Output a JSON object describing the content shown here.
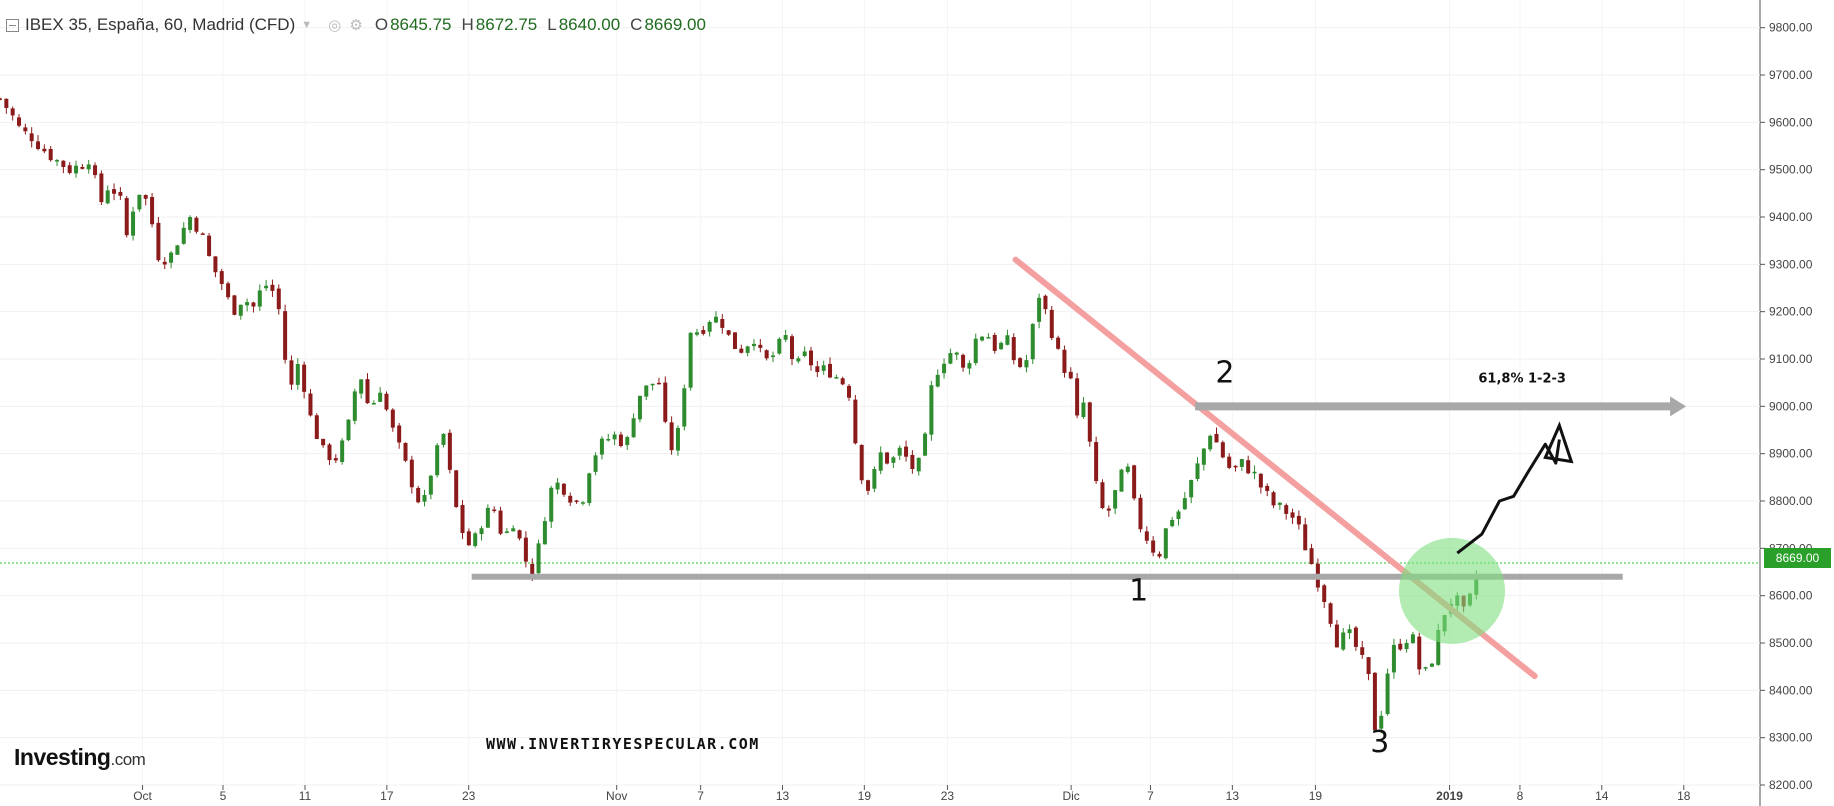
{
  "header": {
    "symbol": "IBEX 35, España, 60, Madrid (CFD)",
    "tools": "◎ ⚙",
    "open_label": "O",
    "open_value": "8645.75",
    "high_label": "H",
    "high_value": "8672.75",
    "low_label": "L",
    "low_value": "8640.00",
    "close_label": "C",
    "close_value": "8669.00"
  },
  "logo": {
    "name": "Investing",
    "suffix": ".com"
  },
  "watermark": "WWW.INVERTIRYESPECULAR.COM",
  "current_price_label": "8669.00",
  "colors": {
    "up": "#2e8b2e",
    "down": "#8b1a1a",
    "trendline": "#f4a0a0",
    "level": "#a8a8a8",
    "price_line": "#22cc22",
    "highlight": "#7ee07e"
  },
  "chart_data": {
    "type": "candlestick",
    "y_axis": {
      "position": "right",
      "range": [
        8200,
        9850
      ],
      "ticks": [
        "9800.00",
        "9700.00",
        "9600.00",
        "9500.00",
        "9400.00",
        "9300.00",
        "9200.00",
        "9100.00",
        "9000.00",
        "8900.00",
        "8800.00",
        "8700.00",
        "8600.00",
        "8500.00",
        "8400.00",
        "8300.00",
        "8200.00"
      ]
    },
    "x_axis": {
      "ticks": [
        {
          "label": "Oct",
          "pos": 0.081
        },
        {
          "label": "5",
          "pos": 0.1267
        },
        {
          "label": "11",
          "pos": 0.1733
        },
        {
          "label": "17",
          "pos": 0.2198
        },
        {
          "label": "23",
          "pos": 0.2663
        },
        {
          "label": "Nov",
          "pos": 0.3504
        },
        {
          "label": "7",
          "pos": 0.3981
        },
        {
          "label": "13",
          "pos": 0.4446
        },
        {
          "label": "19",
          "pos": 0.4911
        },
        {
          "label": "23",
          "pos": 0.5383
        },
        {
          "label": "Dic",
          "pos": 0.6086
        },
        {
          "label": "7",
          "pos": 0.6537
        },
        {
          "label": "13",
          "pos": 0.7002
        },
        {
          "label": "19",
          "pos": 0.7474
        },
        {
          "label": "2019",
          "pos": 0.8236
        },
        {
          "label": "8",
          "pos": 0.8636
        },
        {
          "label": "14",
          "pos": 0.9101
        },
        {
          "label": "18",
          "pos": 0.9567
        }
      ]
    },
    "last_price": 8669,
    "path": [
      [
        0.0,
        9650
      ],
      [
        0.006,
        9620
      ],
      [
        0.012,
        9580
      ],
      [
        0.018,
        9570
      ],
      [
        0.024,
        9545
      ],
      [
        0.032,
        9520
      ],
      [
        0.04,
        9500
      ],
      [
        0.046,
        9510
      ],
      [
        0.052,
        9530
      ],
      [
        0.056,
        9420
      ],
      [
        0.062,
        9470
      ],
      [
        0.068,
        9440
      ],
      [
        0.072,
        9360
      ],
      [
        0.078,
        9460
      ],
      [
        0.084,
        9430
      ],
      [
        0.09,
        9320
      ],
      [
        0.096,
        9310
      ],
      [
        0.102,
        9360
      ],
      [
        0.108,
        9400
      ],
      [
        0.114,
        9370
      ],
      [
        0.12,
        9300
      ],
      [
        0.126,
        9260
      ],
      [
        0.132,
        9200
      ],
      [
        0.138,
        9230
      ],
      [
        0.144,
        9210
      ],
      [
        0.15,
        9260
      ],
      [
        0.156,
        9240
      ],
      [
        0.16,
        9180
      ],
      [
        0.164,
        9020
      ],
      [
        0.17,
        9100
      ],
      [
        0.176,
        8980
      ],
      [
        0.184,
        8900
      ],
      [
        0.192,
        8890
      ],
      [
        0.198,
        8960
      ],
      [
        0.204,
        9080
      ],
      [
        0.21,
        8990
      ],
      [
        0.216,
        9040
      ],
      [
        0.222,
        8960
      ],
      [
        0.228,
        8900
      ],
      [
        0.234,
        8840
      ],
      [
        0.24,
        8780
      ],
      [
        0.246,
        8880
      ],
      [
        0.252,
        8940
      ],
      [
        0.258,
        8800
      ],
      [
        0.264,
        8720
      ],
      [
        0.268,
        8700
      ],
      [
        0.274,
        8760
      ],
      [
        0.28,
        8790
      ],
      [
        0.286,
        8720
      ],
      [
        0.292,
        8760
      ],
      [
        0.298,
        8680
      ],
      [
        0.302,
        8650
      ],
      [
        0.306,
        8700
      ],
      [
        0.312,
        8820
      ],
      [
        0.318,
        8840
      ],
      [
        0.324,
        8810
      ],
      [
        0.33,
        8790
      ],
      [
        0.336,
        8890
      ],
      [
        0.342,
        8920
      ],
      [
        0.348,
        8940
      ],
      [
        0.356,
        8920
      ],
      [
        0.362,
        9020
      ],
      [
        0.368,
        9040
      ],
      [
        0.374,
        9060
      ],
      [
        0.38,
        8900
      ],
      [
        0.386,
        8950
      ],
      [
        0.392,
        9160
      ],
      [
        0.398,
        9160
      ],
      [
        0.404,
        9190
      ],
      [
        0.41,
        9180
      ],
      [
        0.416,
        9130
      ],
      [
        0.422,
        9120
      ],
      [
        0.428,
        9150
      ],
      [
        0.434,
        9090
      ],
      [
        0.44,
        9110
      ],
      [
        0.446,
        9150
      ],
      [
        0.452,
        9080
      ],
      [
        0.458,
        9110
      ],
      [
        0.464,
        9070
      ],
      [
        0.47,
        9080
      ],
      [
        0.476,
        9060
      ],
      [
        0.482,
        9040
      ],
      [
        0.488,
        8870
      ],
      [
        0.494,
        8820
      ],
      [
        0.5,
        8900
      ],
      [
        0.506,
        8880
      ],
      [
        0.512,
        8910
      ],
      [
        0.518,
        8870
      ],
      [
        0.524,
        8880
      ],
      [
        0.53,
        9060
      ],
      [
        0.536,
        9100
      ],
      [
        0.542,
        9120
      ],
      [
        0.548,
        9070
      ],
      [
        0.554,
        9140
      ],
      [
        0.56,
        9160
      ],
      [
        0.566,
        9120
      ],
      [
        0.572,
        9140
      ],
      [
        0.578,
        9080
      ],
      [
        0.584,
        9100
      ],
      [
        0.59,
        9240
      ],
      [
        0.596,
        9180
      ],
      [
        0.602,
        9100
      ],
      [
        0.608,
        9060
      ],
      [
        0.612,
        8970
      ],
      [
        0.616,
        9010
      ],
      [
        0.622,
        8840
      ],
      [
        0.628,
        8760
      ],
      [
        0.634,
        8820
      ],
      [
        0.64,
        8880
      ],
      [
        0.646,
        8760
      ],
      [
        0.652,
        8720
      ],
      [
        0.658,
        8680
      ],
      [
        0.664,
        8760
      ],
      [
        0.67,
        8780
      ],
      [
        0.676,
        8830
      ],
      [
        0.682,
        8890
      ],
      [
        0.688,
        8950
      ],
      [
        0.694,
        8900
      ],
      [
        0.7,
        8860
      ],
      [
        0.706,
        8880
      ],
      [
        0.712,
        8860
      ],
      [
        0.718,
        8820
      ],
      [
        0.724,
        8790
      ],
      [
        0.73,
        8780
      ],
      [
        0.736,
        8760
      ],
      [
        0.742,
        8700
      ],
      [
        0.748,
        8640
      ],
      [
        0.754,
        8580
      ],
      [
        0.76,
        8500
      ],
      [
        0.766,
        8520
      ],
      [
        0.772,
        8480
      ],
      [
        0.778,
        8420
      ],
      [
        0.782,
        8300
      ],
      [
        0.786,
        8380
      ],
      [
        0.79,
        8480
      ],
      [
        0.796,
        8500
      ],
      [
        0.802,
        8520
      ],
      [
        0.808,
        8420
      ],
      [
        0.814,
        8470
      ],
      [
        0.82,
        8560
      ],
      [
        0.826,
        8600
      ],
      [
        0.832,
        8560
      ],
      [
        0.836,
        8600
      ],
      [
        0.841,
        8672
      ]
    ],
    "annotations": [
      {
        "type": "trendline",
        "from": [
          0.577,
          9310
        ],
        "to": [
          0.872,
          8430
        ]
      },
      {
        "type": "horizontal_line",
        "y": 8640,
        "x_from": 0.268,
        "x_to": 0.922
      },
      {
        "type": "arrow",
        "y": 9000,
        "x_from": 0.679,
        "x_to": 0.958
      },
      {
        "type": "text",
        "text": "61,8% 1-2-3",
        "x": 0.84,
        "y": 9050
      },
      {
        "type": "marker",
        "text": "1",
        "x": 0.647,
        "y": 8590
      },
      {
        "type": "marker",
        "text": "2",
        "x": 0.696,
        "y": 9050
      },
      {
        "type": "marker",
        "text": "3",
        "x": 0.784,
        "y": 8270
      },
      {
        "type": "circle",
        "x": 0.825,
        "y": 8610
      },
      {
        "type": "projection",
        "points": [
          [
            0.828,
            8690
          ],
          [
            0.842,
            8730
          ],
          [
            0.852,
            8800
          ],
          [
            0.86,
            8810
          ],
          [
            0.868,
            8860
          ],
          [
            0.878,
            8920
          ],
          [
            0.884,
            8880
          ],
          [
            0.886,
            8930
          ]
        ]
      }
    ]
  }
}
